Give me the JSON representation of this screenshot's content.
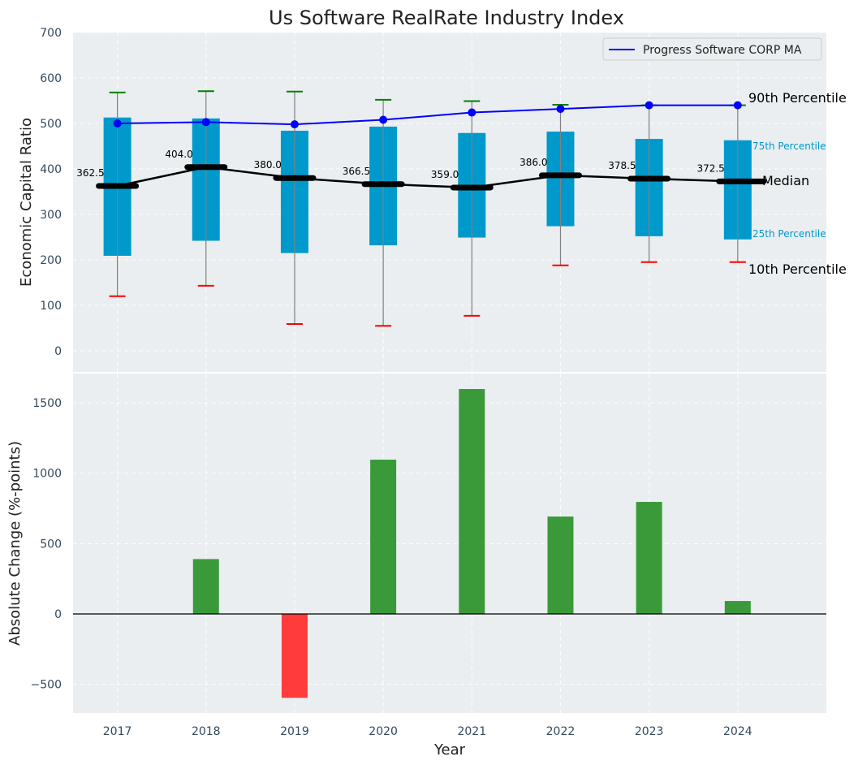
{
  "chart_data": [
    {
      "type": "box",
      "title": "Us Software RealRate Industry Index",
      "xlabel": "",
      "ylabel": "Economic Capital Ratio",
      "ylim": [
        -50,
        700
      ],
      "yticks": [
        0,
        100,
        200,
        300,
        400,
        500,
        600,
        700
      ],
      "xlim": [
        2016.5,
        2025.0
      ],
      "grid": true,
      "categories": [
        "2017",
        "2018",
        "2019",
        "2020",
        "2021",
        "2022",
        "2023",
        "2024"
      ],
      "p10": [
        120,
        143,
        59,
        55,
        77,
        188,
        195,
        195
      ],
      "p25": [
        209,
        242,
        215,
        232,
        249,
        274,
        252,
        245
      ],
      "median": [
        362.5,
        404.0,
        380.0,
        366.5,
        359.0,
        386.0,
        378.5,
        372.5
      ],
      "median_labels": [
        "362.5",
        "404.0",
        "380.0",
        "366.5",
        "359.0",
        "386.0",
        "378.5",
        "372.5"
      ],
      "p75": [
        513,
        511,
        484,
        493,
        479,
        482,
        466,
        463
      ],
      "p90": [
        568,
        571,
        570,
        552,
        549,
        541,
        540,
        540
      ],
      "series": [
        {
          "name": "Progress Software CORP MA",
          "values": [
            500,
            503,
            498,
            508,
            524,
            532,
            540,
            540
          ],
          "color": "#0000ff"
        }
      ],
      "legend": {
        "position": "top-right",
        "entries": [
          "Progress Software CORP MA"
        ]
      },
      "annotations": {
        "p90": "90th Percentile",
        "p75": "75th Percentile",
        "median": "Median",
        "p25": "25th Percentile",
        "p10": "10th Percentile"
      },
      "colors": {
        "box": "#0099cc",
        "median": "#000000",
        "p90_cap": "#008000",
        "p10_cap": "#ff0000",
        "whisker": "#808080",
        "background": "#eaeef0"
      }
    },
    {
      "type": "bar",
      "title": "",
      "xlabel": "Year",
      "ylabel": "Absolute Change (%-points)",
      "ylim": [
        -700,
        1700
      ],
      "yticks": [
        -500,
        0,
        500,
        1000,
        1500
      ],
      "ytick_labels": [
        "−500",
        "0",
        "500",
        "1000",
        "1500"
      ],
      "xlim": [
        2016.5,
        2025.0
      ],
      "grid": true,
      "categories": [
        "2017",
        "2018",
        "2019",
        "2020",
        "2021",
        "2022",
        "2023",
        "2024"
      ],
      "values": [
        0,
        390,
        -596,
        1096,
        1598,
        692,
        796,
        92
      ],
      "colors": {
        "positive": "#3a9a3a",
        "negative": "#ff3b3b",
        "zero_line": "#000000"
      }
    }
  ]
}
